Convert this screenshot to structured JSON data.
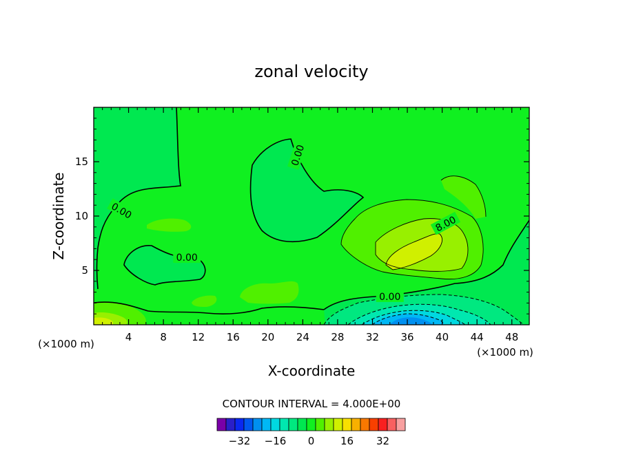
{
  "chart_data": {
    "type": "contour",
    "title": "zonal velocity",
    "xlabel": "X-coordinate",
    "ylabel": "Z-coordinate",
    "x_unit_label": "(×1000 m)",
    "z_unit_label": "(×1000 m)",
    "xlim": [
      0,
      50
    ],
    "ylim": [
      0,
      20
    ],
    "x_ticks": [
      4,
      8,
      12,
      16,
      20,
      24,
      28,
      32,
      36,
      40,
      44,
      48
    ],
    "y_ticks": [
      5,
      10,
      15
    ],
    "contour_interval_text": "CONTOUR INTERVAL = 4.000E+00",
    "contour_interval": 4,
    "contour_labels": [
      {
        "text": "0.00",
        "x": 3.2,
        "y": 10.5,
        "angle": -30
      },
      {
        "text": "0.00",
        "x": 10.7,
        "y": 6.2,
        "angle": 0
      },
      {
        "text": "0.00",
        "x": 23.4,
        "y": 15.6,
        "angle": 72
      },
      {
        "text": "8.00",
        "x": 40.4,
        "y": 9.3,
        "angle": 28
      },
      {
        "text": "0.00",
        "x": 34.0,
        "y": 2.6,
        "angle": 0
      }
    ],
    "colorbar": {
      "colors": [
        "#7a00a8",
        "#2a1fc8",
        "#0a28f0",
        "#0058f0",
        "#0090f0",
        "#00b8f5",
        "#00d8e0",
        "#00e8b0",
        "#00e880",
        "#00e850",
        "#10f020",
        "#50f000",
        "#98f000",
        "#d0f000",
        "#f8e000",
        "#f8b000",
        "#f87800",
        "#f84000",
        "#f82020",
        "#f86060",
        "#f8a0a0"
      ],
      "tick_values": [
        -32,
        -16,
        0,
        16,
        32
      ],
      "tick_labels": [
        "−32",
        "−16",
        "0",
        "16",
        "32"
      ],
      "vmin": -42,
      "vmax": 42
    }
  }
}
